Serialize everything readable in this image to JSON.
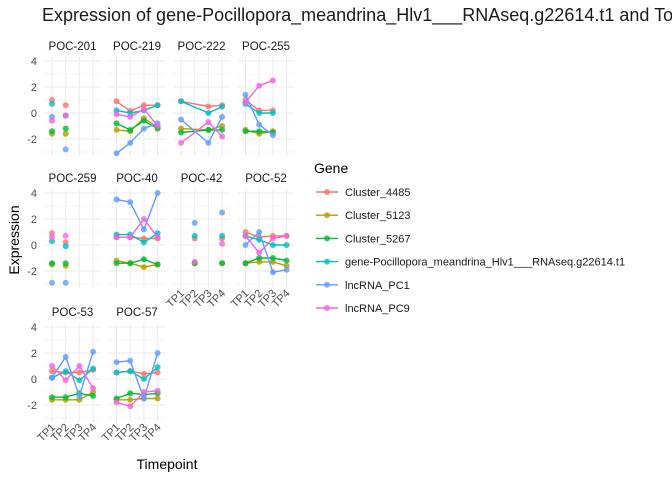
{
  "chart_data": {
    "type": "line",
    "title": "Expression of gene-Pocillopora_meandrina_Hlv1___RNAseq.g22614.t1 and To",
    "xlabel": "Timepoint",
    "ylabel": "Expression",
    "x": [
      "TP1",
      "TP2",
      "TP3",
      "TP4"
    ],
    "yticks": [
      4,
      2,
      0,
      -2
    ],
    "ylim": [
      -3.3,
      4.3
    ],
    "legend_title": "Gene",
    "legend_position": "right",
    "series_names": [
      "Cluster_4485",
      "Cluster_5123",
      "Cluster_5267",
      "gene-Pocillopora_meandrina_Hlv1___RNAseq.g22614.t1",
      "lncRNA_PC1",
      "lncRNA_PC9"
    ],
    "colors": [
      "#F8766D",
      "#B79F00",
      "#00BA38",
      "#00BFC4",
      "#619CFF",
      "#F564E3"
    ],
    "panels": [
      {
        "name": "POC-201",
        "lines": false,
        "values": [
          [
            1.0,
            0.6,
            null,
            null
          ],
          [
            -1.6,
            -1.6,
            null,
            null
          ],
          [
            -1.4,
            -1.2,
            null,
            null
          ],
          [
            0.7,
            -0.2,
            null,
            null
          ],
          [
            -0.3,
            -2.8,
            null,
            null
          ],
          [
            -0.6,
            -0.2,
            null,
            null
          ]
        ]
      },
      {
        "name": "POC-219",
        "lines": true,
        "values": [
          [
            0.9,
            0.15,
            0.6,
            0.6
          ],
          [
            -1.3,
            -1.4,
            -0.4,
            -1.1
          ],
          [
            -0.8,
            -1.3,
            -0.6,
            -1.2
          ],
          [
            0.2,
            0.0,
            0.2,
            0.6
          ],
          [
            -3.1,
            -2.3,
            -1.2,
            -0.8
          ],
          [
            -0.1,
            -0.3,
            0.3,
            -1.0
          ]
        ]
      },
      {
        "name": "POC-222",
        "lines": true,
        "values": [
          [
            0.9,
            null,
            0.5,
            0.6
          ],
          [
            -1.2,
            null,
            -1.3,
            -1.0
          ],
          [
            -1.5,
            null,
            -1.3,
            -1.3
          ],
          [
            0.9,
            null,
            0.0,
            0.5
          ],
          [
            -0.5,
            null,
            -2.3,
            -0.3
          ],
          [
            -2.3,
            null,
            -0.7,
            -1.8
          ]
        ]
      },
      {
        "name": "POC-255",
        "lines": true,
        "values": [
          [
            1.0,
            0.2,
            0.2,
            null
          ],
          [
            -1.3,
            -1.6,
            -1.4,
            null
          ],
          [
            -1.4,
            -1.4,
            -1.5,
            null
          ],
          [
            0.7,
            0.0,
            0.0,
            null
          ],
          [
            1.4,
            -0.9,
            -1.7,
            null
          ],
          [
            0.8,
            2.1,
            2.5,
            null
          ]
        ]
      },
      {
        "name": "POC-259",
        "lines": false,
        "values": [
          [
            0.9,
            0.2,
            null,
            null
          ],
          [
            -1.5,
            -1.6,
            null,
            null
          ],
          [
            -1.4,
            -1.4,
            null,
            null
          ],
          [
            0.3,
            -0.1,
            null,
            null
          ],
          [
            -2.9,
            -2.9,
            null,
            null
          ],
          [
            0.6,
            0.7,
            null,
            null
          ]
        ]
      },
      {
        "name": "POC-40",
        "lines": true,
        "values": [
          [
            0.6,
            0.6,
            0.5,
            0.5
          ],
          [
            -1.2,
            -1.4,
            -1.7,
            -1.5
          ],
          [
            -1.4,
            -1.4,
            -1.1,
            -1.5
          ],
          [
            0.8,
            0.8,
            0.2,
            0.9
          ],
          [
            3.5,
            3.3,
            1.2,
            4.0
          ],
          [
            0.6,
            0.6,
            2.0,
            0.6
          ]
        ]
      },
      {
        "name": "POC-42",
        "lines": false,
        "values": [
          [
            null,
            0.5,
            null,
            0.5
          ],
          [
            null,
            -1.4,
            null,
            -1.4
          ],
          [
            null,
            -1.4,
            null,
            -1.4
          ],
          [
            null,
            0.7,
            null,
            0.7
          ],
          [
            null,
            1.7,
            null,
            2.5
          ],
          [
            null,
            -1.3,
            null,
            0.1
          ]
        ]
      },
      {
        "name": "POC-52",
        "lines": true,
        "values": [
          [
            1.0,
            0.6,
            0.7,
            0.7
          ],
          [
            -1.4,
            -1.3,
            -1.3,
            -1.6
          ],
          [
            -1.4,
            -1.0,
            -1.0,
            -1.2
          ],
          [
            0.7,
            0.4,
            0.0,
            0.0
          ],
          [
            0.0,
            1.0,
            -2.1,
            -1.9
          ],
          [
            0.7,
            -0.6,
            0.5,
            0.7
          ]
        ]
      },
      {
        "name": "POC-53",
        "lines": true,
        "values": [
          [
            0.6,
            0.5,
            0.5,
            0.7
          ],
          [
            -1.6,
            -1.6,
            -1.6,
            -1.0
          ],
          [
            -1.4,
            -1.4,
            -1.1,
            -1.3
          ],
          [
            0.1,
            0.6,
            -0.1,
            0.8
          ],
          [
            0.1,
            1.7,
            -1.3,
            2.1
          ],
          [
            1.0,
            -0.1,
            1.0,
            -0.7
          ]
        ]
      },
      {
        "name": "POC-57",
        "lines": true,
        "values": [
          [
            0.5,
            0.6,
            0.4,
            0.5
          ],
          [
            -1.6,
            -1.6,
            -1.5,
            -1.5
          ],
          [
            -1.5,
            -1.1,
            -1.2,
            -1.1
          ],
          [
            0.5,
            0.6,
            0.0,
            0.9
          ],
          [
            1.3,
            1.4,
            -1.5,
            2.0
          ],
          [
            -1.8,
            -2.1,
            -1.0,
            -0.9
          ]
        ]
      }
    ]
  }
}
